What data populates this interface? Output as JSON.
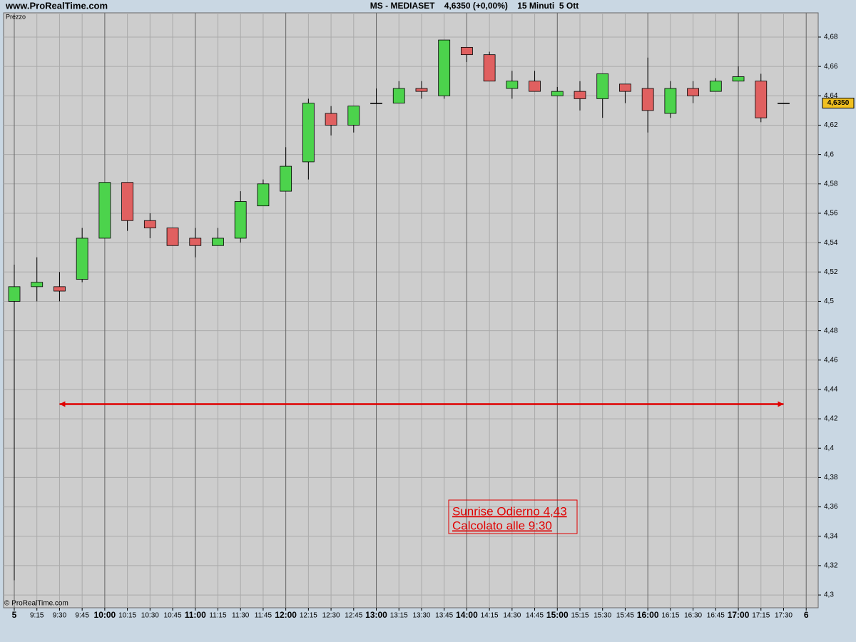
{
  "chart_data": {
    "type": "candlestick",
    "site": "www.ProRealTime.com",
    "title": "MS - MEDIASET    4,6350 (+0,00%)    15 Minuti  5 Ott",
    "y_label": "Prezzo",
    "copyright": "© ProRealTime.com",
    "categories": [
      "5",
      "9:15",
      "9:30",
      "9:45",
      "10:00",
      "10:15",
      "10:30",
      "10:45",
      "11:00",
      "11:15",
      "11:30",
      "11:45",
      "12:00",
      "12:15",
      "12:30",
      "12:45",
      "13:00",
      "13:15",
      "13:30",
      "13:45",
      "14:00",
      "14:15",
      "14:30",
      "14:45",
      "15:00",
      "15:15",
      "15:30",
      "15:45",
      "16:00",
      "16:15",
      "16:30",
      "16:45",
      "17:00",
      "17:15",
      "17:30",
      "6"
    ],
    "open": [
      4.5,
      4.51,
      4.51,
      4.515,
      4.543,
      4.581,
      4.555,
      4.55,
      4.543,
      4.538,
      4.543,
      4.565,
      4.575,
      4.595,
      4.628,
      4.62,
      4.635,
      4.635,
      4.645,
      4.64,
      4.673,
      4.668,
      4.645,
      4.65,
      4.64,
      4.643,
      4.638,
      4.648,
      4.645,
      4.628,
      4.645,
      4.643,
      4.65,
      4.65,
      4.635,
      null
    ],
    "high": [
      4.525,
      4.53,
      4.52,
      4.55,
      4.581,
      4.581,
      4.56,
      4.55,
      4.55,
      4.55,
      4.575,
      4.583,
      4.605,
      4.638,
      4.633,
      4.633,
      4.645,
      4.65,
      4.65,
      4.678,
      4.673,
      4.67,
      4.657,
      4.657,
      4.646,
      4.65,
      4.655,
      4.648,
      4.666,
      4.65,
      4.65,
      4.652,
      4.66,
      4.655,
      4.635,
      null
    ],
    "low": [
      4.31,
      4.5,
      4.5,
      4.513,
      4.543,
      4.548,
      4.543,
      4.538,
      4.53,
      4.538,
      4.54,
      4.565,
      4.575,
      4.583,
      4.613,
      4.615,
      4.635,
      4.635,
      4.638,
      4.638,
      4.663,
      4.65,
      4.638,
      4.643,
      4.64,
      4.63,
      4.625,
      4.635,
      4.615,
      4.625,
      4.635,
      4.643,
      4.65,
      4.622,
      4.635,
      null
    ],
    "close": [
      4.51,
      4.513,
      4.507,
      4.543,
      4.581,
      4.555,
      4.55,
      4.538,
      4.538,
      4.543,
      4.568,
      4.58,
      4.592,
      4.635,
      4.62,
      4.633,
      4.635,
      4.645,
      4.643,
      4.678,
      4.668,
      4.65,
      4.65,
      4.643,
      4.643,
      4.638,
      4.655,
      4.643,
      4.63,
      4.645,
      4.64,
      4.65,
      4.653,
      4.625,
      4.635,
      null
    ],
    "up_color": "#4cd34c",
    "down_color": "#e06060",
    "ylim": [
      4.2913,
      4.6965
    ],
    "yticks": [
      {
        "value": 4.3,
        "label": "4,3"
      },
      {
        "value": 4.32,
        "label": "4,32"
      },
      {
        "value": 4.34,
        "label": "4,34"
      },
      {
        "value": 4.36,
        "label": "4,36"
      },
      {
        "value": 4.38,
        "label": "4,38"
      },
      {
        "value": 4.4,
        "label": "4,4"
      },
      {
        "value": 4.42,
        "label": "4,42"
      },
      {
        "value": 4.44,
        "label": "4,44"
      },
      {
        "value": 4.46,
        "label": "4,46"
      },
      {
        "value": 4.48,
        "label": "4,48"
      },
      {
        "value": 4.5,
        "label": "4,5"
      },
      {
        "value": 4.52,
        "label": "4,52"
      },
      {
        "value": 4.54,
        "label": "4,54"
      },
      {
        "value": 4.56,
        "label": "4,56"
      },
      {
        "value": 4.58,
        "label": "4,58"
      },
      {
        "value": 4.6,
        "label": "4,6"
      },
      {
        "value": 4.62,
        "label": "4,62"
      },
      {
        "value": 4.64,
        "label": "4,64"
      },
      {
        "value": 4.66,
        "label": "4,66"
      },
      {
        "value": 4.68,
        "label": "4,68"
      }
    ],
    "last_price": {
      "value": 4.635,
      "label": "4,6350"
    },
    "level": {
      "value": 4.43,
      "color": "#e00000"
    },
    "annotation": [
      "Sunrise Odierno 4,43",
      "Calcolato alle 9:30"
    ],
    "grid": true
  }
}
